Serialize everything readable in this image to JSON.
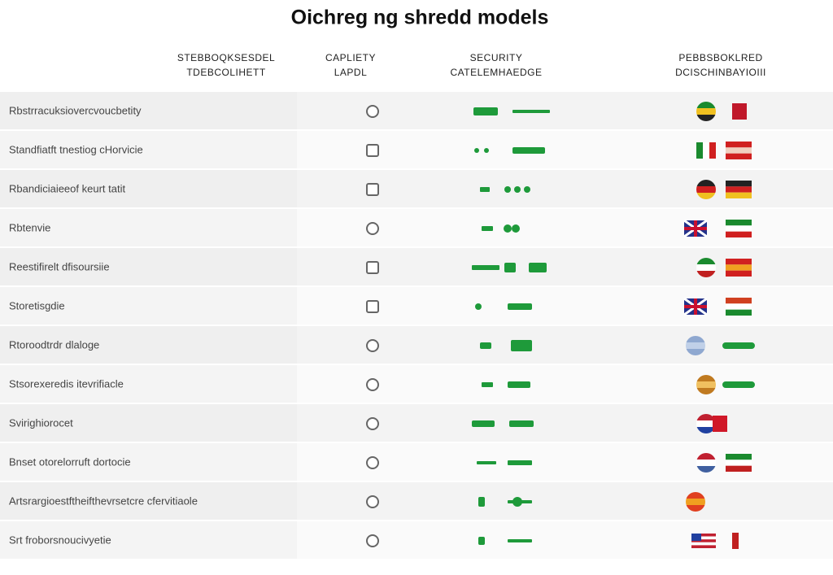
{
  "header": {
    "title": "Oichreg ng shredd models"
  },
  "table": {
    "columns": [
      [
        "STEBBOQKSESDEL",
        "TDEBCOLIHETT"
      ],
      [
        "CAPLIETY",
        "LAPDL"
      ],
      [
        "SECURITY",
        "CATELEMHAEDGE"
      ],
      [
        "PEBBSBOKLRED",
        "DCISCHINBAYIOIII"
      ]
    ],
    "rows": [
      "Rbstrracuksiovercvoucbetity",
      "Standfiatft tnestiog cHorvicie",
      "Rbandiciaieeof keurt tatit",
      "Rbtenvie",
      "Reestifirelt dfisoursiie",
      "Storetisgdie",
      "Rtoroodtrdr dlaloge",
      "Stsorexeredis itevrifiacle",
      "Svirighiorocet",
      "Bnset otorelorruft dortocie",
      "Artsrargioestftheifthevrsetcre cfervitiaole",
      "Srt froborsnoucivyetie"
    ]
  }
}
